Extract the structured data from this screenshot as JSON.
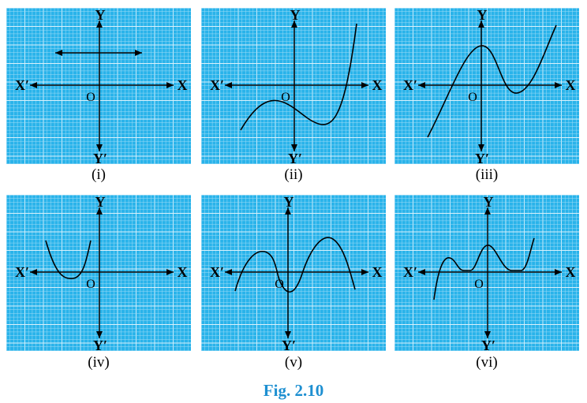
{
  "figure": {
    "caption": "Fig. 2.10",
    "colors": {
      "grid_bg": "#29b3ea",
      "grid_line": "#9fdcf6",
      "grid_line_major": "#d9f1fc",
      "caption": "#1d8fd1",
      "ink": "#000000"
    }
  },
  "axis_labels": {
    "x": "X",
    "x_neg": "X′",
    "y": "Y",
    "y_neg": "Y′",
    "origin": "O"
  },
  "panels": [
    {
      "label": "(i)"
    },
    {
      "label": "(ii)"
    },
    {
      "label": "(iii)"
    },
    {
      "label": "(iv)"
    },
    {
      "label": "(v)"
    },
    {
      "label": "(vi)"
    }
  ]
}
